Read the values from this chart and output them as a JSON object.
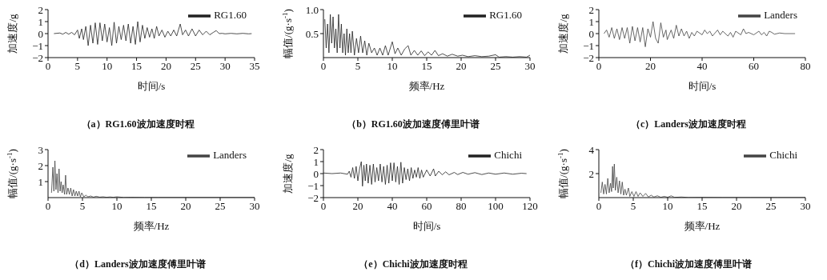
{
  "chart_data": [
    {
      "type": "line",
      "title": "（a）RG1.60波加速度时程",
      "xlabel": "时间/s",
      "ylabel": "加速度/g",
      "legend": "top right",
      "xlim": [
        0,
        35
      ],
      "xticks": [
        0,
        5,
        10,
        15,
        20,
        25,
        30,
        35
      ],
      "ylim": [
        -2,
        2
      ],
      "yticks": [
        -2,
        -1,
        0,
        1,
        2
      ],
      "x": [
        1,
        2,
        2.5,
        3,
        3.5,
        4,
        4.5,
        5,
        5.3,
        5.7,
        6,
        6.4,
        6.8,
        7.2,
        7.6,
        8,
        8.4,
        8.8,
        9.2,
        9.6,
        10,
        10.4,
        10.8,
        11.2,
        11.6,
        12,
        12.4,
        12.8,
        13.2,
        13.6,
        14,
        14.4,
        14.8,
        15.2,
        15.6,
        16,
        16.4,
        16.8,
        17.2,
        17.6,
        18,
        18.4,
        18.8,
        19.3,
        19.8,
        20.3,
        20.8,
        21.3,
        21.8,
        22.4,
        22.8,
        23.3,
        23.8,
        24.4,
        25,
        25.6,
        26.2,
        26.8,
        27.4,
        28,
        28.5,
        29,
        29.5,
        30,
        31,
        32,
        33,
        34,
        34.5
      ],
      "series": [
        {
          "name": "RG1.60",
          "color": "#222222",
          "values": [
            0,
            0.05,
            -0.05,
            0.1,
            -0.05,
            0.1,
            -0.1,
            0.3,
            -0.4,
            0.4,
            -0.5,
            0.6,
            -1.0,
            0.7,
            -0.8,
            0.9,
            -0.9,
            0.9,
            -0.6,
            0.8,
            -0.7,
            0.5,
            -1.0,
            0.95,
            -0.8,
            0.6,
            -0.5,
            0.7,
            -0.6,
            0.8,
            -0.8,
            0.6,
            -0.9,
            1.0,
            -0.7,
            0.7,
            -0.4,
            0.5,
            -0.3,
            0.4,
            -0.4,
            0.6,
            -0.2,
            0.3,
            -0.3,
            0.2,
            -0.2,
            0.3,
            -0.2,
            0.8,
            -0.1,
            0.3,
            -0.2,
            0.4,
            -0.2,
            0.3,
            -0.1,
            0.2,
            -0.1,
            0.1,
            0.25,
            0,
            0.02,
            -0.02,
            0.02,
            -0.02,
            0.02,
            -0.02,
            0
          ]
        }
      ]
    },
    {
      "type": "line",
      "title": "（b）RG1.60波加速度傅里叶谱",
      "xlabel": "频率/Hz",
      "ylabel": "幅值/(g·s$^{-1}$)",
      "legend": "top right",
      "xlim": [
        0,
        30
      ],
      "xticks": [
        0,
        5,
        10,
        15,
        20,
        25,
        30
      ],
      "ylim": [
        0,
        1
      ],
      "yticks": [
        0.5,
        {
          "value": 1,
          "label": "1.0"
        }
      ],
      "x": [
        0.2,
        0.4,
        0.6,
        0.8,
        1,
        1.2,
        1.4,
        1.6,
        1.8,
        2,
        2.2,
        2.4,
        2.6,
        2.8,
        3,
        3.2,
        3.4,
        3.6,
        3.8,
        4,
        4.2,
        4.5,
        4.8,
        5.1,
        5.4,
        5.7,
        6,
        6.3,
        6.6,
        7,
        7.4,
        7.8,
        8.2,
        8.6,
        9,
        9.4,
        10,
        10.4,
        10.8,
        11.3,
        11.8,
        12.3,
        12.7,
        13.2,
        13.7,
        14.2,
        14.7,
        15.2,
        15.7,
        16.2,
        16.7,
        17.3,
        18,
        18.7,
        19.5,
        20.2,
        21,
        22,
        23,
        24,
        25,
        25.5,
        26.5,
        27.5,
        28.5,
        29.5,
        30
      ],
      "series": [
        {
          "name": "RG1.60",
          "color": "#222222",
          "values": [
            0.8,
            0.2,
            0.7,
            0.1,
            0.9,
            0.3,
            0.85,
            0.2,
            0.6,
            0.1,
            0.9,
            0.2,
            0.7,
            0.1,
            0.5,
            0.05,
            0.6,
            0.1,
            0.5,
            0.1,
            0.55,
            0.05,
            0.4,
            0.1,
            0.45,
            0.1,
            0.35,
            0.05,
            0.3,
            0.1,
            0.2,
            0.05,
            0.2,
            0.05,
            0.25,
            0.05,
            0.33,
            0.08,
            0.2,
            0.05,
            0.18,
            0.25,
            0.05,
            0.15,
            0.05,
            0.14,
            0.04,
            0.12,
            0.05,
            0.15,
            0.04,
            0.08,
            0.03,
            0.07,
            0.03,
            0.05,
            0.02,
            0.04,
            0.02,
            0.03,
            0.06,
            0.01,
            0.02,
            0.01,
            0.02,
            0.01,
            0.05
          ]
        }
      ]
    },
    {
      "type": "line",
      "title": "（c）Landers波加速度时程",
      "xlabel": "时间/s",
      "ylabel": "加速度/g",
      "legend": "top right",
      "xlim": [
        0,
        80
      ],
      "xticks": [
        0,
        20,
        40,
        60,
        80
      ],
      "ylim": [
        -2,
        2
      ],
      "yticks": [
        -2,
        -1,
        0,
        1,
        2
      ],
      "x": [
        2,
        3,
        4,
        5,
        6,
        7,
        8,
        9,
        10,
        11,
        12,
        13,
        14,
        15,
        16,
        17,
        18,
        19,
        20,
        21,
        22,
        23,
        24,
        25,
        26,
        26.5,
        28,
        29,
        30,
        31,
        32,
        33,
        34,
        35,
        36,
        37,
        38,
        40,
        41,
        42,
        43,
        44,
        46,
        47,
        48,
        50,
        51,
        52,
        53,
        55,
        56,
        57,
        58,
        60,
        62,
        63,
        64,
        65,
        66,
        67,
        68,
        70,
        72,
        76
      ],
      "series": [
        {
          "name": "Landers",
          "color": "#444444",
          "values": [
            0,
            0.3,
            -0.3,
            0.5,
            -0.4,
            0.4,
            -0.5,
            0.5,
            -0.4,
            0.5,
            -0.8,
            0.6,
            -0.6,
            0.5,
            -0.7,
            0.5,
            -1.1,
            0.4,
            -0.3,
            1.0,
            -0.4,
            -0.8,
            0.9,
            -0.3,
            0.3,
            -0.5,
            0.3,
            -0.4,
            0.7,
            -0.2,
            0.4,
            -0.2,
            0.2,
            -0.4,
            0.1,
            -0.2,
            0.2,
            -0.1,
            0.3,
            0,
            0.2,
            -0.2,
            0.3,
            -0.1,
            0.2,
            -0.2,
            0.1,
            -0.3,
            0.2,
            -0.1,
            0.4,
            0,
            0.1,
            -0.1,
            0.2,
            -0.1,
            0.1,
            -0.2,
            0.2,
            0.1,
            -0.05,
            0.05,
            0,
            0
          ]
        }
      ]
    },
    {
      "type": "line",
      "title": "（d）Landers波加速度傅里叶谱",
      "xlabel": "频率/Hz",
      "ylabel": "幅值/(g·s$^{-1}$)",
      "legend": "top right",
      "xlim": [
        0,
        30
      ],
      "xticks": [
        0,
        5,
        10,
        15,
        20,
        25,
        30
      ],
      "ylim": [
        0,
        3
      ],
      "yticks": [
        1,
        2,
        3
      ],
      "x": [
        0.5,
        0.7,
        0.85,
        1,
        1.15,
        1.3,
        1.45,
        1.6,
        1.75,
        1.9,
        2.05,
        2.2,
        2.4,
        2.55,
        2.7,
        2.9,
        3.1,
        3.3,
        3.5,
        3.7,
        3.9,
        4.1,
        4.3,
        4.5,
        4.7,
        4.9,
        5.2,
        5.5,
        5.8,
        6.2,
        6.6,
        7,
        7.5,
        8,
        8.5,
        9,
        9.5,
        10,
        11,
        12,
        14,
        16,
        20,
        25,
        30
      ],
      "series": [
        {
          "name": "Landers",
          "color": "#444444",
          "values": [
            0.3,
            1.9,
            0.4,
            2.3,
            0.5,
            1.5,
            0.3,
            1.8,
            0.4,
            1.0,
            0.3,
            0.8,
            0.2,
            1.4,
            0.2,
            0.6,
            0.2,
            0.6,
            0.1,
            0.5,
            0.1,
            0.4,
            0.1,
            0.4,
            0.05,
            0.3,
            0.05,
            0.15,
            0.05,
            0.1,
            0.03,
            0.08,
            0.03,
            0.05,
            0.02,
            0.04,
            0.02,
            0.05,
            0.01,
            0.02,
            0.01,
            0.01,
            0.01,
            0.01,
            0.01
          ]
        }
      ]
    },
    {
      "type": "line",
      "title": "（e）Chichi波加速度时程",
      "xlabel": "时间/s",
      "ylabel": "加速度/g",
      "legend": "top right",
      "xlim": [
        0,
        120
      ],
      "xticks": [
        0,
        20,
        40,
        60,
        80,
        100,
        120
      ],
      "ylim": [
        -2,
        2
      ],
      "yticks": [
        -2,
        -1,
        0,
        1,
        2
      ],
      "x": [
        0,
        5,
        10,
        14,
        15,
        16,
        17,
        18,
        19,
        20,
        21,
        22,
        22.7,
        23.5,
        24.3,
        25,
        26,
        27,
        28,
        29,
        30,
        31,
        32,
        33,
        34,
        35,
        36,
        37,
        38,
        39,
        40,
        41,
        42,
        43,
        44,
        45,
        46,
        47,
        48,
        49,
        50,
        51,
        52,
        53,
        54,
        55,
        56,
        57,
        58,
        60,
        62,
        64,
        65,
        67,
        69,
        71,
        73,
        76,
        78,
        81,
        84,
        88,
        92,
        96,
        100,
        105,
        110,
        115,
        118
      ],
      "series": [
        {
          "name": "Chichi",
          "color": "#222222",
          "values": [
            0.05,
            0,
            0.05,
            -0.05,
            0.2,
            -0.3,
            0.5,
            -0.4,
            0.6,
            -0.6,
            0.4,
            1.0,
            -1.05,
            0.7,
            -0.6,
            0.8,
            -0.8,
            0.7,
            -0.9,
            0.8,
            -0.7,
            0.5,
            -0.6,
            0.8,
            -0.7,
            0.6,
            -0.9,
            0.7,
            -0.8,
            0.9,
            -0.6,
            0.9,
            -0.7,
            0.6,
            -0.9,
            0.95,
            -0.8,
            0.5,
            -0.5,
            0.4,
            -0.6,
            0.5,
            -0.4,
            0.3,
            -0.3,
            0.5,
            -0.4,
            0.3,
            -0.3,
            0.3,
            -0.2,
            0.4,
            -0.2,
            0.2,
            -0.1,
            0.15,
            -0.1,
            0.1,
            -0.08,
            0.1,
            -0.05,
            0.08,
            -0.08,
            0.05,
            -0.05,
            0.05,
            -0.05,
            0.03,
            0
          ]
        }
      ]
    },
    {
      "type": "line",
      "title": "（f）Chichi波加速度傅里叶谱",
      "xlabel": "频率/Hz",
      "ylabel": "幅值/(g·s$^{-1}$)",
      "legend": "top right",
      "xlim": [
        0,
        30
      ],
      "xticks": [
        0,
        5,
        10,
        15,
        20,
        25,
        30
      ],
      "ylim": [
        0,
        4
      ],
      "yticks": [
        2,
        4
      ],
      "x": [
        0.3,
        0.5,
        0.7,
        0.9,
        1.1,
        1.3,
        1.5,
        1.7,
        1.85,
        2,
        2.1,
        2.25,
        2.4,
        2.6,
        2.8,
        3,
        3.2,
        3.4,
        3.6,
        3.8,
        4,
        4.3,
        4.5,
        4.8,
        5.1,
        5.4,
        5.7,
        6,
        6.4,
        6.8,
        7.2,
        7.6,
        8,
        8.5,
        9,
        9.5,
        10,
        10.5,
        11,
        12,
        13,
        15,
        18,
        22,
        26,
        30
      ],
      "series": [
        {
          "name": "Chichi",
          "color": "#444444",
          "values": [
            0.4,
            1.3,
            0.3,
            1.1,
            0.3,
            1.6,
            0.4,
            1.2,
            0.5,
            2.6,
            0.8,
            2.8,
            0.6,
            1.7,
            0.4,
            1.4,
            0.3,
            1.3,
            0.2,
            0.7,
            0.2,
            0.8,
            0.1,
            0.5,
            0.1,
            0.5,
            0.1,
            0.4,
            0.1,
            0.35,
            0.05,
            0.2,
            0.05,
            0.15,
            0.03,
            0.1,
            0.03,
            0.15,
            0.02,
            0.05,
            0.01,
            0.02,
            0.01,
            0.01,
            0.01,
            0.01
          ]
        }
      ]
    }
  ]
}
